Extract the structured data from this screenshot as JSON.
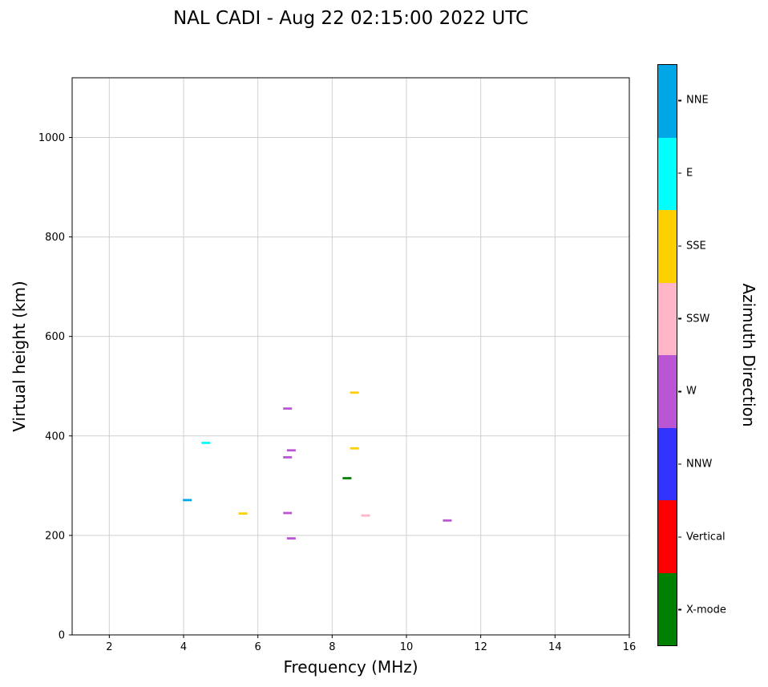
{
  "title": "NAL CADI - Aug 22 02:15:00 2022 UTC",
  "chart_data": {
    "type": "scatter",
    "marker": "horizontal-dash",
    "title": "NAL CADI - Aug 22 02:15:00 2022 UTC",
    "xlabel": "Frequency (MHz)",
    "ylabel": "Virtual height (km)",
    "xlim": [
      1,
      16
    ],
    "ylim": [
      0,
      1120
    ],
    "x_ticks": [
      2,
      4,
      6,
      8,
      10,
      12,
      14,
      16
    ],
    "y_ticks": [
      0,
      200,
      400,
      600,
      800,
      1000
    ],
    "grid": true,
    "grid_color": "#d0d0d0",
    "colorbar": {
      "label": "Azimuth Direction",
      "categories": [
        {
          "label": "NNE",
          "color": "#00A6E6"
        },
        {
          "label": "E",
          "color": "#00FFFF"
        },
        {
          "label": "SSE",
          "color": "#FFD000"
        },
        {
          "label": "SSW",
          "color": "#FFB6C8"
        },
        {
          "label": "W",
          "color": "#BA55D3"
        },
        {
          "label": "NNW",
          "color": "#3333FF"
        },
        {
          "label": "Vertical",
          "color": "#FF0000"
        },
        {
          "label": "X-mode",
          "color": "#008000"
        }
      ]
    },
    "points": [
      {
        "x": 4.1,
        "y": 271,
        "category": "NNE"
      },
      {
        "x": 4.6,
        "y": 386,
        "category": "E"
      },
      {
        "x": 5.6,
        "y": 244,
        "category": "SSE"
      },
      {
        "x": 6.8,
        "y": 455,
        "category": "W"
      },
      {
        "x": 6.9,
        "y": 371,
        "category": "W"
      },
      {
        "x": 6.8,
        "y": 357,
        "category": "W"
      },
      {
        "x": 6.8,
        "y": 245,
        "category": "W"
      },
      {
        "x": 6.9,
        "y": 194,
        "category": "W"
      },
      {
        "x": 8.6,
        "y": 487,
        "category": "SSE"
      },
      {
        "x": 8.6,
        "y": 375,
        "category": "SSE"
      },
      {
        "x": 8.4,
        "y": 315,
        "category": "X-mode"
      },
      {
        "x": 8.9,
        "y": 240,
        "category": "SSW"
      },
      {
        "x": 11.1,
        "y": 230,
        "category": "W"
      }
    ]
  }
}
